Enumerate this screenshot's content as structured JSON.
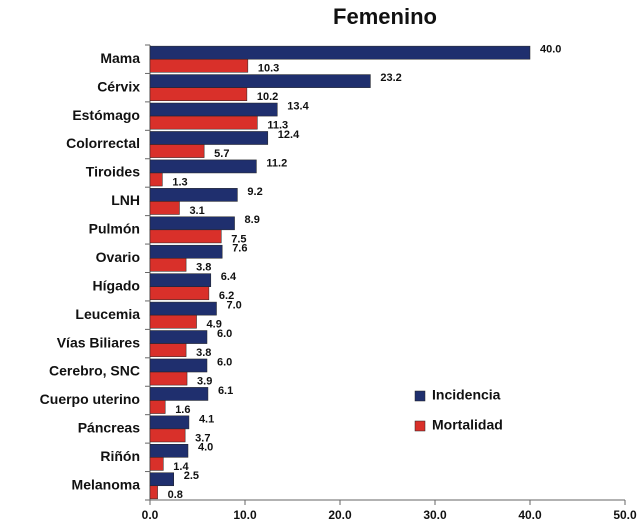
{
  "chart_data": {
    "type": "bar",
    "orientation": "horizontal",
    "title": "Femenino",
    "categories": [
      "Mama",
      "Cérvix",
      "Estómago",
      "Colorrectal",
      "Tiroides",
      "LNH",
      "Pulmón",
      "Ovario",
      "Hígado",
      "Leucemia",
      "Vías Biliares",
      "Cerebro, SNC",
      "Cuerpo uterino",
      "Páncreas",
      "Riñón",
      "Melanoma"
    ],
    "series": [
      {
        "name": "Incidencia",
        "color": "#1f2f6e",
        "values": [
          40.0,
          23.2,
          13.4,
          12.4,
          11.2,
          9.2,
          8.9,
          7.6,
          6.4,
          7.0,
          6.0,
          6.0,
          6.1,
          4.1,
          4.0,
          2.5
        ],
        "value_labels": [
          "40.0",
          "23.2",
          "13.4",
          "12.4",
          "11.2",
          "9.2",
          "8.9",
          "7.6",
          "6.4",
          "7.0",
          "6.0",
          "6.0",
          "6.1",
          "4.1",
          "4.0",
          "2.5"
        ]
      },
      {
        "name": "Mortalidad",
        "color": "#d9302a",
        "values": [
          10.3,
          10.2,
          11.3,
          5.7,
          1.3,
          3.1,
          7.5,
          3.8,
          6.2,
          4.9,
          3.8,
          3.9,
          1.6,
          3.7,
          1.4,
          0.8
        ],
        "value_labels": [
          "10.3",
          "10.2",
          "11.3",
          "5.7",
          "1.3",
          "3.1",
          "7.5",
          "3.8",
          "6.2",
          "4.9",
          "3.8",
          "3.9",
          "1.6",
          "3.7",
          "1.4",
          "0.8"
        ]
      }
    ],
    "xlim": [
      0,
      50
    ],
    "xticks": [
      {
        "value": 0,
        "label": "0.0"
      },
      {
        "value": 10,
        "label": "10.0"
      },
      {
        "value": 20,
        "label": "20.0"
      },
      {
        "value": 30,
        "label": "30.0"
      },
      {
        "value": 40,
        "label": "40.0"
      },
      {
        "value": 50,
        "label": "50.0"
      }
    ],
    "grid": false,
    "legend": "lower right"
  }
}
